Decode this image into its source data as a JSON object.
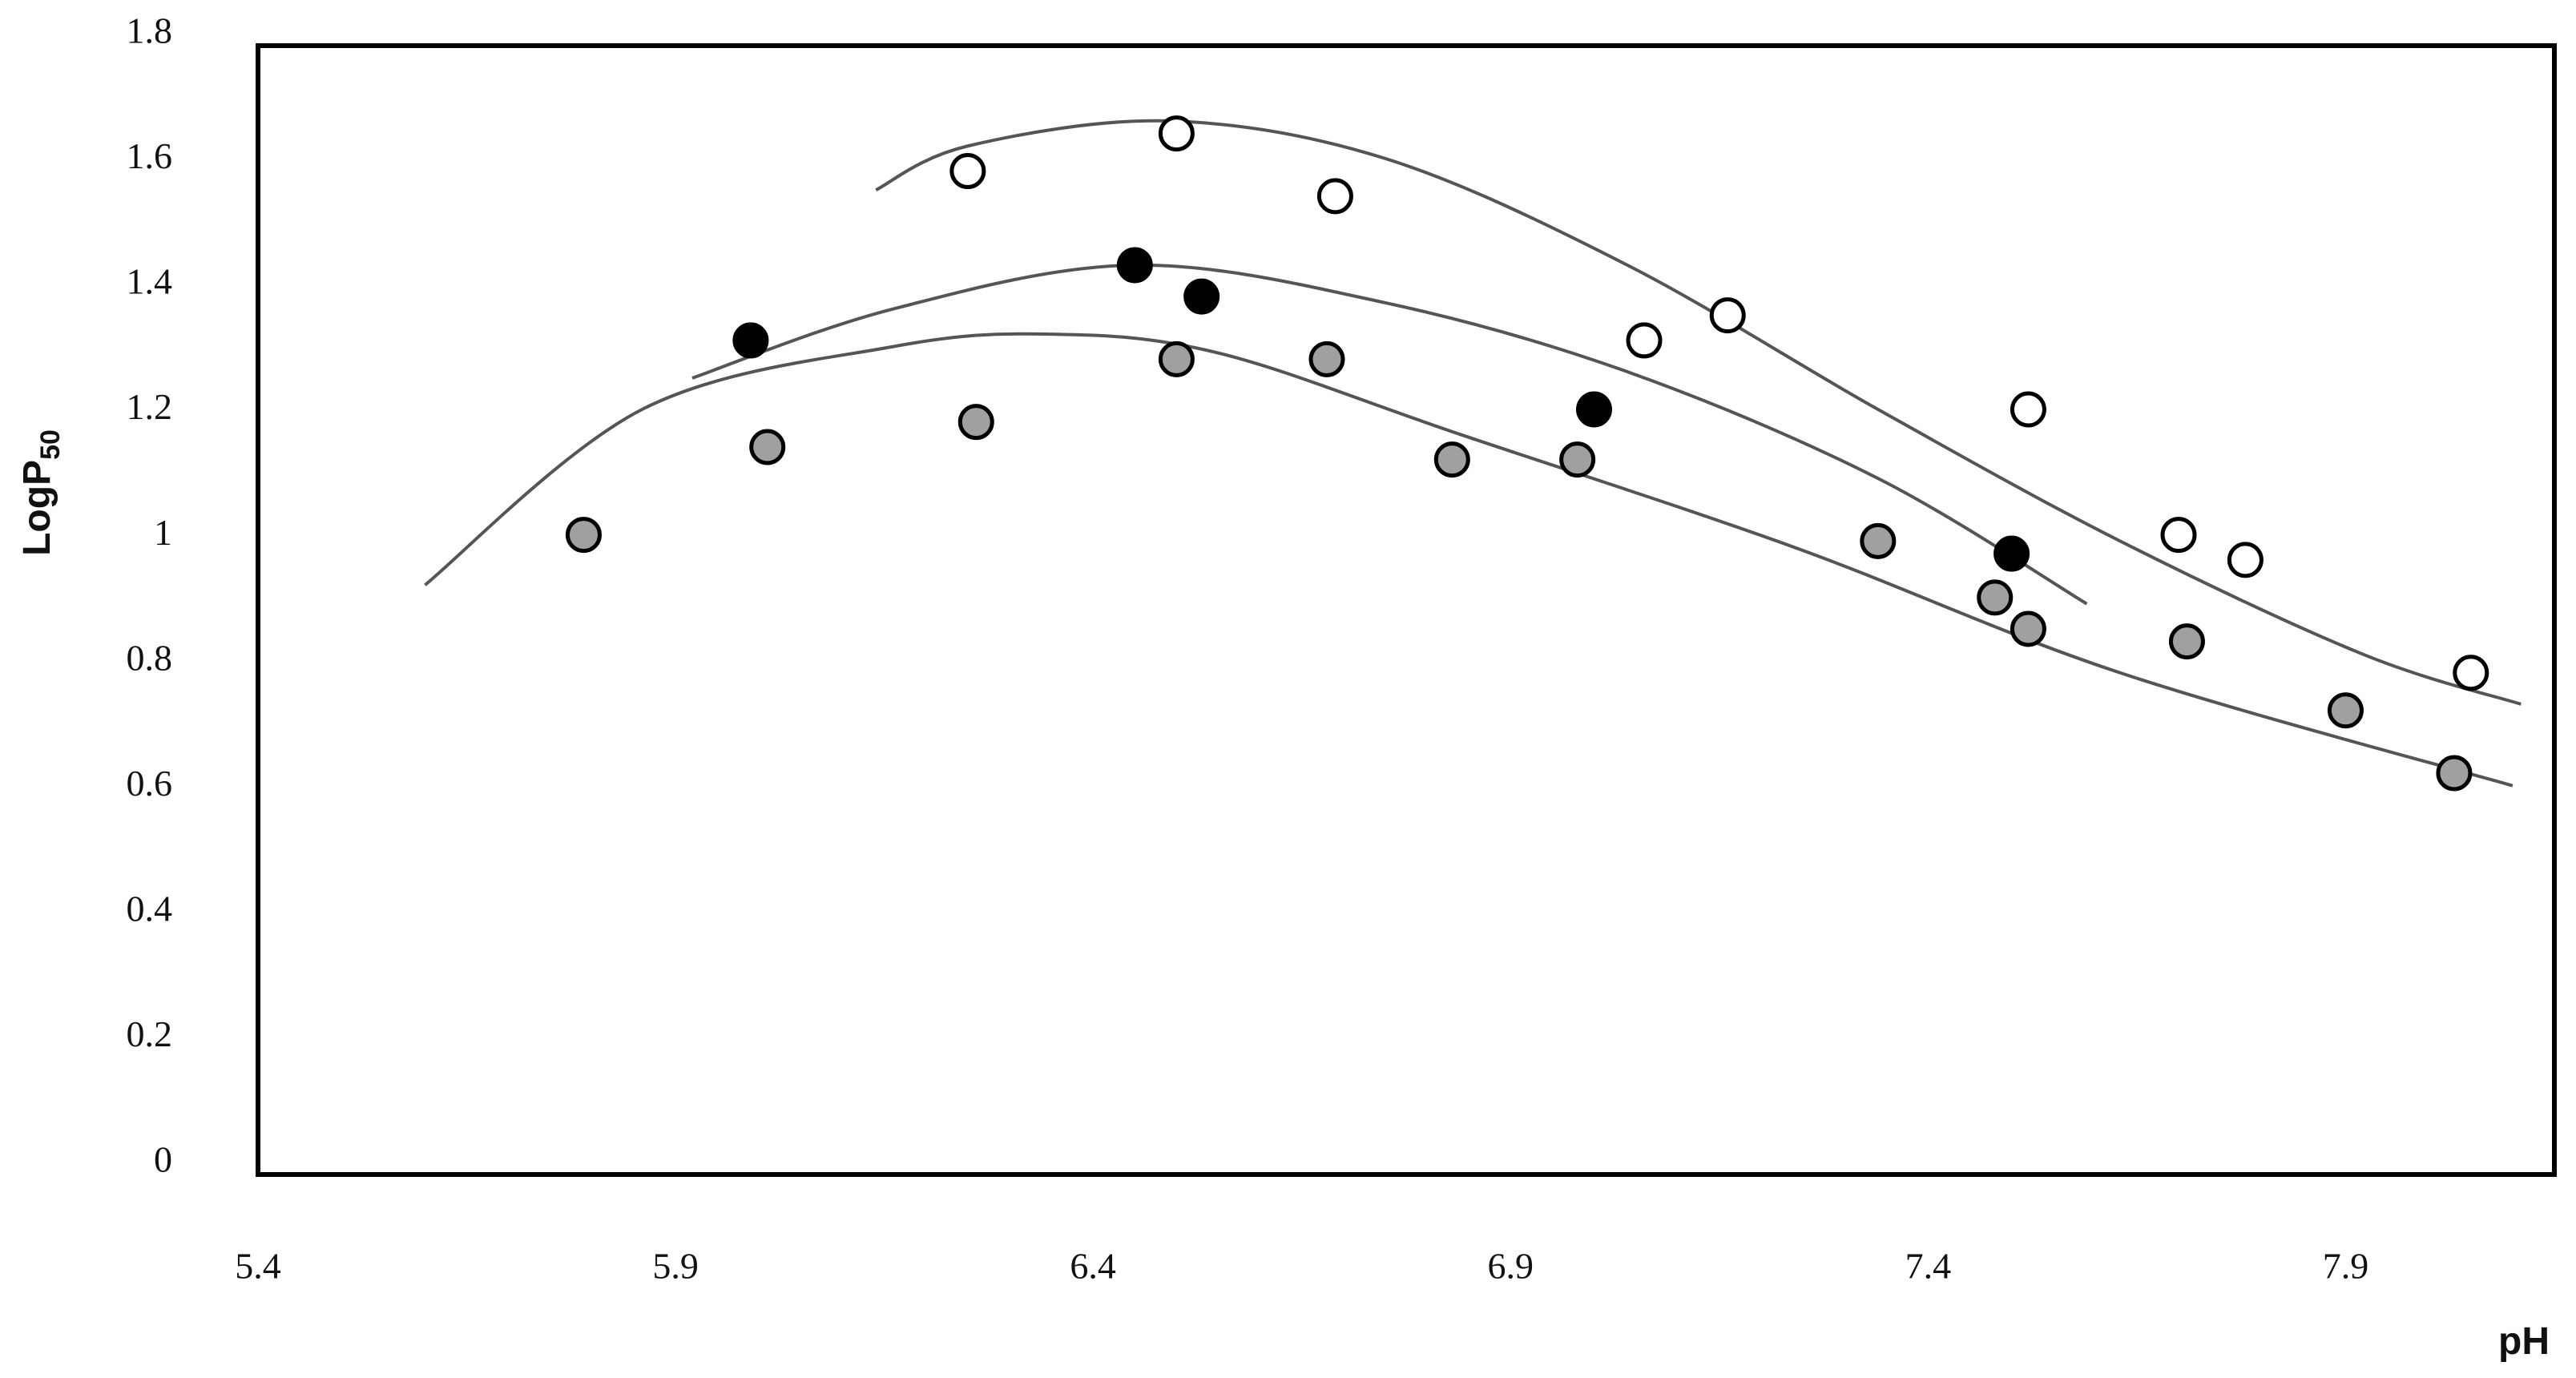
{
  "chart_data": {
    "type": "scatter",
    "xlabel": "pH",
    "ylabel": "LogP",
    "ylabel_subscript": "50",
    "xlim": [
      5.4,
      8.15
    ],
    "ylim": [
      0,
      1.8
    ],
    "xticks": [
      5.4,
      5.9,
      6.4,
      6.9,
      7.4,
      7.9
    ],
    "yticks": [
      0,
      0.2,
      0.4,
      0.6,
      0.8,
      1,
      1.2,
      1.4,
      1.6,
      1.8
    ],
    "grid": false,
    "series": [
      {
        "color": "#ffffff",
        "x": [
          6.25,
          6.5,
          6.69,
          7.06,
          7.16,
          7.52,
          7.7,
          7.78,
          8.05
        ],
        "values": [
          1.6,
          1.66,
          1.56,
          1.33,
          1.37,
          1.22,
          1.02,
          0.98,
          0.8
        ]
      },
      {
        "color": "#000000",
        "x": [
          5.99,
          6.45,
          6.53,
          7.0,
          7.5
        ],
        "values": [
          1.33,
          1.45,
          1.4,
          1.22,
          0.99
        ]
      },
      {
        "color": "#a0a0a0",
        "x": [
          5.79,
          6.01,
          6.26,
          6.5,
          6.68,
          6.83,
          6.98,
          7.34,
          7.48,
          7.52,
          7.71,
          7.9,
          8.03
        ],
        "values": [
          1.02,
          1.16,
          1.2,
          1.3,
          1.3,
          1.14,
          1.14,
          1.01,
          0.92,
          0.87,
          0.85,
          0.74,
          0.64
        ]
      }
    ],
    "fits": [
      {
        "color": "#555555",
        "x": [
          6.14,
          6.25,
          6.49,
          6.75,
          7.04,
          7.34,
          7.63,
          7.92,
          8.11
        ],
        "values": [
          1.57,
          1.64,
          1.68,
          1.62,
          1.45,
          1.22,
          1.01,
          0.83,
          0.75
        ]
      },
      {
        "color": "#555555",
        "x": [
          5.92,
          6.16,
          6.45,
          6.75,
          7.04,
          7.34,
          7.59
        ],
        "values": [
          1.27,
          1.38,
          1.45,
          1.39,
          1.28,
          1.11,
          0.91
        ]
      },
      {
        "color": "#555555",
        "x": [
          5.6,
          5.86,
          6.16,
          6.35,
          6.55,
          6.84,
          7.24,
          7.63,
          8.1
        ],
        "values": [
          0.94,
          1.22,
          1.32,
          1.34,
          1.31,
          1.18,
          1.0,
          0.8,
          0.62
        ]
      }
    ]
  }
}
